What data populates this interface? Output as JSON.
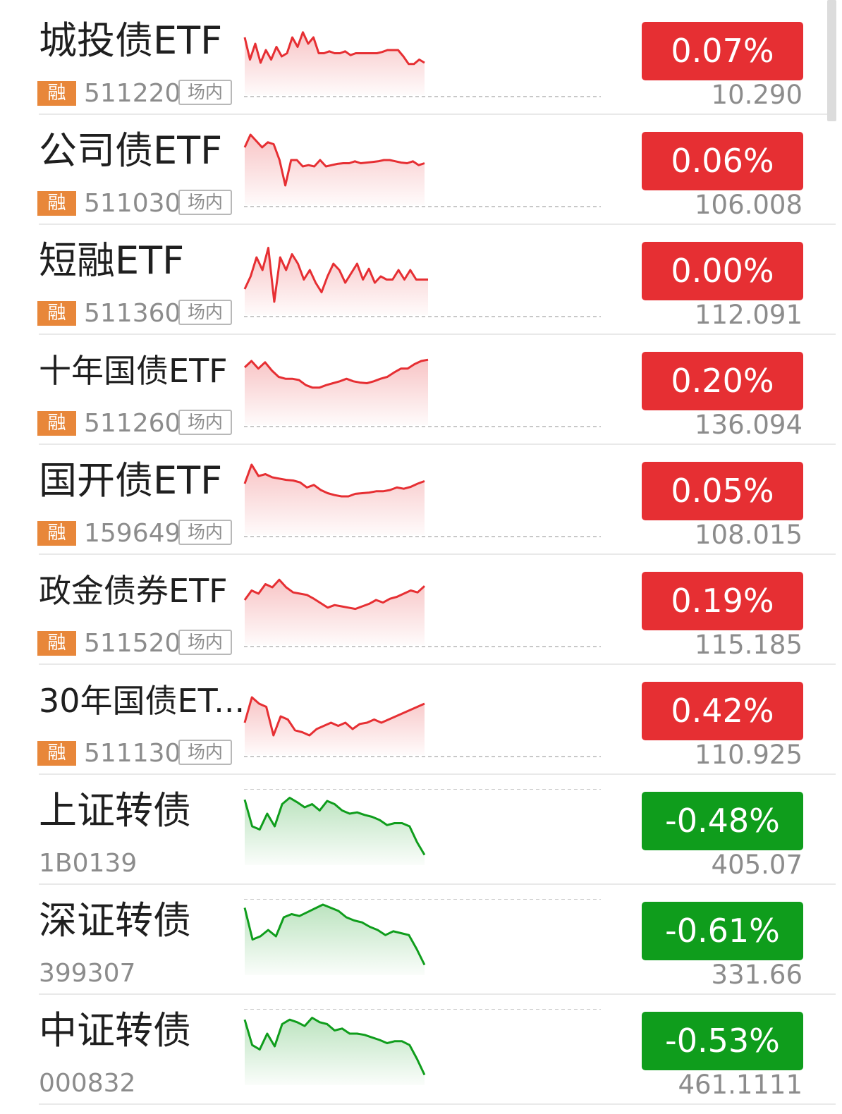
{
  "colors": {
    "up": "#e62f33",
    "down": "#0f9d1c",
    "rong_tag": "#e8873a"
  },
  "items": [
    {
      "name": "城投债ETF",
      "rong": "融",
      "code": "511220",
      "market": "场内",
      "change": "0.07%",
      "price": "10.290",
      "trend": "up",
      "spark": [
        20,
        55,
        30,
        60,
        40,
        55,
        35,
        50,
        45,
        20,
        35,
        12,
        30,
        20,
        45,
        45,
        42,
        45,
        45,
        42,
        48,
        45,
        45,
        45,
        45,
        45,
        43,
        40,
        40,
        40,
        50,
        62,
        62,
        55,
        60
      ]
    },
    {
      "name": "公司债ETF",
      "rong": "融",
      "code": "511030",
      "market": "场内",
      "change": "0.06%",
      "price": "106.008",
      "trend": "up",
      "spark": [
        20,
        0,
        10,
        20,
        12,
        15,
        40,
        80,
        40,
        40,
        50,
        48,
        50,
        40,
        50,
        48,
        46,
        45,
        45,
        42,
        45,
        44,
        43,
        42,
        40,
        40,
        42,
        44,
        45,
        42,
        48,
        45
      ]
    },
    {
      "name": "短融ETF",
      "rong": "融",
      "code": "511360",
      "market": "场内",
      "change": "0.00%",
      "price": "112.091",
      "trend": "flat",
      "spark": [
        70,
        50,
        20,
        40,
        5,
        90,
        20,
        40,
        15,
        30,
        55,
        40,
        60,
        75,
        50,
        30,
        40,
        60,
        45,
        30,
        55,
        38,
        60,
        50,
        55,
        55,
        40,
        55,
        40,
        55,
        55,
        55
      ]
    },
    {
      "name": "十年国债ETF",
      "rong": "融",
      "code": "511260",
      "market": "场内",
      "change": "0.20%",
      "price": "136.094",
      "trend": "up",
      "spark": [
        20,
        10,
        22,
        12,
        25,
        35,
        38,
        38,
        40,
        48,
        52,
        52,
        48,
        45,
        42,
        38,
        42,
        44,
        45,
        42,
        38,
        35,
        28,
        22,
        22,
        15,
        10,
        8
      ]
    },
    {
      "name": "国开债ETF",
      "rong": "融",
      "code": "159649",
      "market": "场内",
      "change": "0.05%",
      "price": "108.015",
      "trend": "up",
      "spark": [
        30,
        0,
        18,
        15,
        20,
        22,
        24,
        25,
        28,
        36,
        32,
        40,
        45,
        48,
        50,
        50,
        46,
        45,
        44,
        42,
        42,
        40,
        36,
        38,
        35,
        30,
        26
      ]
    },
    {
      "name": "政金债券ETF",
      "rong": "融",
      "code": "511520",
      "market": "场内",
      "change": "0.19%",
      "price": "115.185",
      "trend": "up",
      "spark": [
        40,
        25,
        30,
        15,
        20,
        8,
        20,
        28,
        30,
        32,
        38,
        45,
        52,
        48,
        50,
        52,
        54,
        50,
        46,
        40,
        44,
        38,
        35,
        30,
        25,
        28,
        18
      ]
    },
    {
      "name": "30年国债ET...",
      "rong": "融",
      "code": "511130",
      "market": "场内",
      "change": "0.42%",
      "price": "110.925",
      "trend": "up",
      "spark": [
        60,
        20,
        30,
        35,
        80,
        50,
        55,
        72,
        75,
        80,
        70,
        65,
        60,
        65,
        60,
        70,
        62,
        60,
        55,
        60,
        55,
        50,
        45,
        40,
        35,
        30
      ]
    },
    {
      "name": "上证转债",
      "rong": "",
      "code": "1B0139",
      "market": "",
      "change": "-0.48%",
      "price": "405.07",
      "trend": "down",
      "spark": [
        8,
        50,
        55,
        30,
        50,
        15,
        5,
        12,
        20,
        15,
        25,
        10,
        15,
        25,
        30,
        28,
        32,
        35,
        40,
        48,
        45,
        45,
        50,
        75,
        95
      ]
    },
    {
      "name": "深证转债",
      "rong": "",
      "code": "399307",
      "market": "",
      "change": "-0.61%",
      "price": "331.66",
      "trend": "down",
      "spark": [
        5,
        55,
        50,
        40,
        50,
        20,
        15,
        18,
        12,
        6,
        0,
        5,
        10,
        20,
        25,
        28,
        35,
        40,
        48,
        42,
        45,
        48,
        70,
        95
      ]
    },
    {
      "name": "中证转债",
      "rong": "",
      "code": "000832",
      "market": "",
      "change": "-0.53%",
      "price": "461.1111",
      "trend": "down",
      "spark": [
        8,
        48,
        55,
        30,
        50,
        15,
        8,
        12,
        18,
        5,
        12,
        15,
        25,
        22,
        30,
        30,
        32,
        36,
        40,
        45,
        42,
        42,
        48,
        70,
        95
      ]
    }
  ]
}
